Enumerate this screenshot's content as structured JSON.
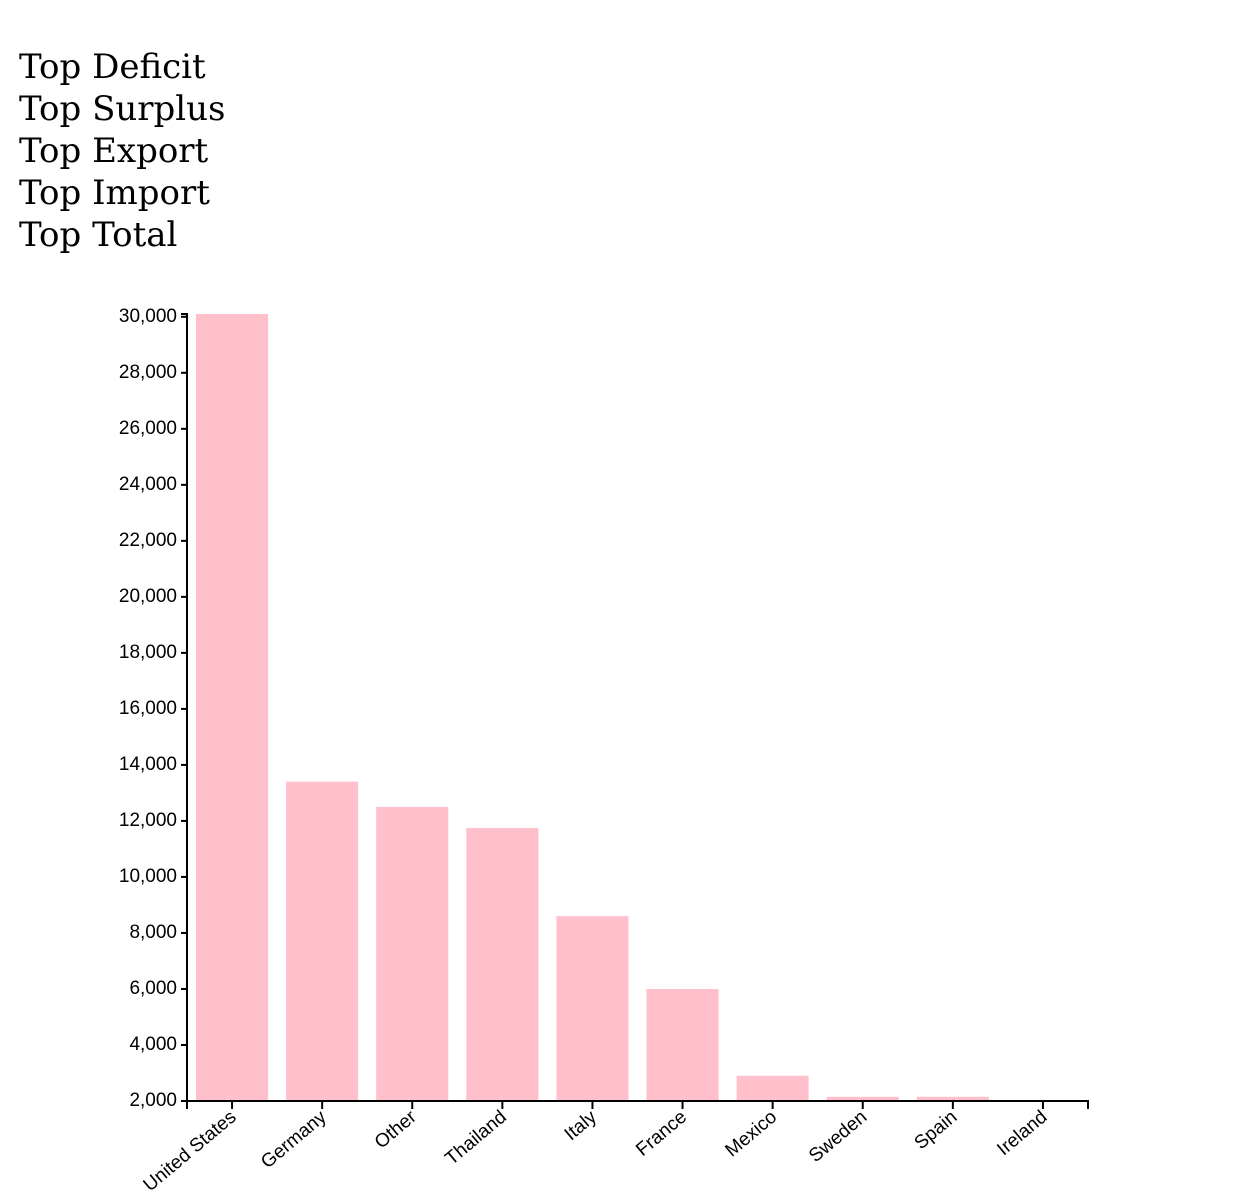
{
  "menu": {
    "items": [
      "Top Deficit",
      "Top Surplus",
      "Top Export",
      "Top Import",
      "Top Total"
    ]
  },
  "chart_data": {
    "type": "bar",
    "categories": [
      "United States",
      "Germany",
      "Other",
      "Thailand",
      "Italy",
      "France",
      "Mexico",
      "Sweden",
      "Spain",
      "Ireland"
    ],
    "values": [
      30100,
      13400,
      12500,
      11750,
      8600,
      6000,
      2900,
      2150,
      2150,
      2000
    ],
    "ylim": [
      2000,
      30100
    ],
    "yticks": [
      2000,
      4000,
      6000,
      8000,
      10000,
      12000,
      14000,
      16000,
      18000,
      20000,
      22000,
      24000,
      26000,
      28000,
      30000
    ],
    "bar_color": "#ffc0cb",
    "axis_color": "#000000",
    "grid": false,
    "title": "",
    "xlabel": "",
    "ylabel": ""
  }
}
